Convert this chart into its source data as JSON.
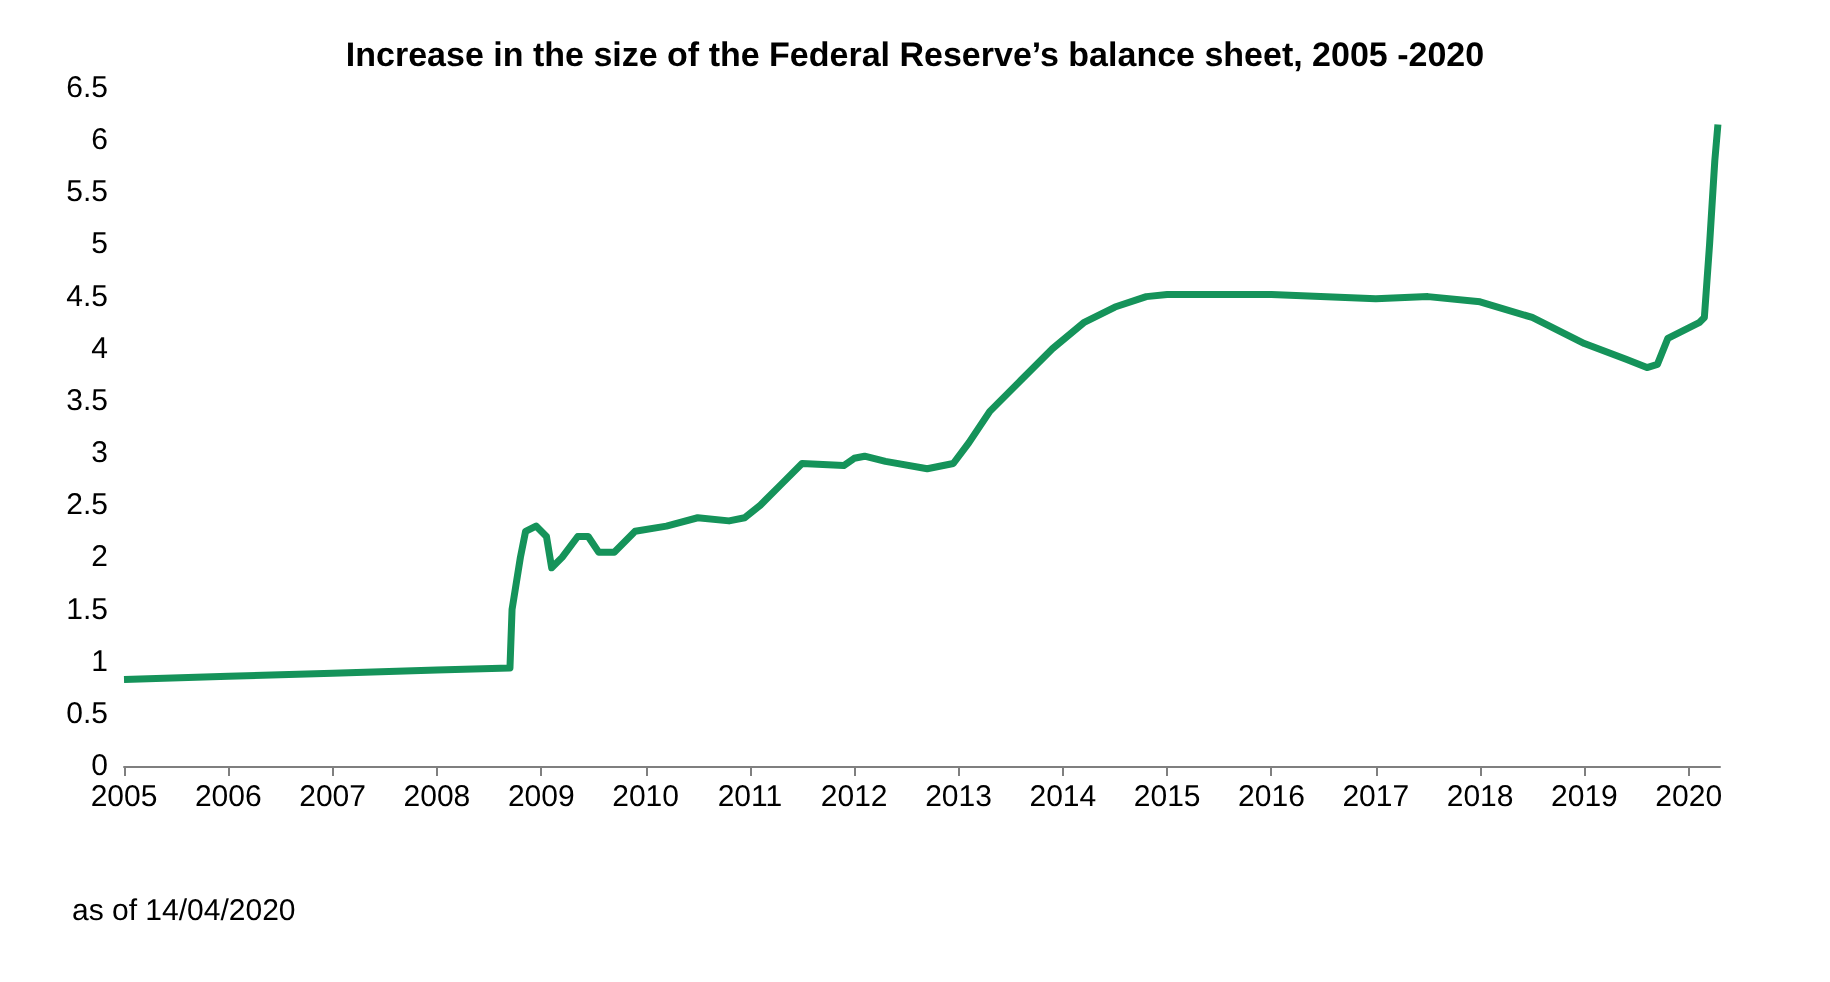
{
  "chart_data": {
    "type": "line",
    "title": "Increase in the size of the Federal Reserve’s balance sheet, 2005 -2020",
    "annotations": [
      "as of 14/04/2020"
    ],
    "x": [
      2005.0,
      2006.0,
      2007.0,
      2008.0,
      2008.7,
      2008.72,
      2008.8,
      2008.85,
      2008.95,
      2009.05,
      2009.1,
      2009.2,
      2009.35,
      2009.45,
      2009.55,
      2009.7,
      2009.9,
      2010.2,
      2010.5,
      2010.8,
      2010.95,
      2011.1,
      2011.3,
      2011.5,
      2011.9,
      2012.0,
      2012.1,
      2012.3,
      2012.7,
      2012.95,
      2013.1,
      2013.3,
      2013.6,
      2013.9,
      2014.2,
      2014.5,
      2014.8,
      2015.0,
      2016.0,
      2017.0,
      2017.5,
      2018.0,
      2018.5,
      2019.0,
      2019.4,
      2019.6,
      2019.7,
      2019.8,
      2020.0,
      2020.1,
      2020.15,
      2020.2,
      2020.25,
      2020.28
    ],
    "series": [
      {
        "color": "#15935a",
        "values": [
          0.83,
          0.86,
          0.89,
          0.92,
          0.94,
          1.5,
          2.0,
          2.25,
          2.3,
          2.2,
          1.9,
          2.0,
          2.2,
          2.2,
          2.05,
          2.05,
          2.25,
          2.3,
          2.38,
          2.35,
          2.38,
          2.5,
          2.7,
          2.9,
          2.88,
          2.95,
          2.97,
          2.92,
          2.85,
          2.9,
          3.1,
          3.4,
          3.7,
          4.0,
          4.25,
          4.4,
          4.5,
          4.52,
          4.52,
          4.48,
          4.5,
          4.45,
          4.3,
          4.05,
          3.9,
          3.82,
          3.85,
          4.1,
          4.2,
          4.25,
          4.3,
          5.0,
          5.8,
          6.15
        ]
      }
    ],
    "xlim": [
      2005,
      2020.3
    ],
    "xticks": [
      2005,
      2006,
      2007,
      2008,
      2009,
      2010,
      2011,
      2012,
      2013,
      2014,
      2015,
      2016,
      2017,
      2018,
      2019,
      2020
    ],
    "ylim": [
      0,
      6.5
    ],
    "yticks": [
      0,
      0.5,
      1,
      1.5,
      2,
      2.5,
      3,
      3.5,
      4,
      4.5,
      5,
      5.5,
      6,
      6.5
    ],
    "grid": false,
    "marker": "none",
    "line_style": "solid"
  }
}
